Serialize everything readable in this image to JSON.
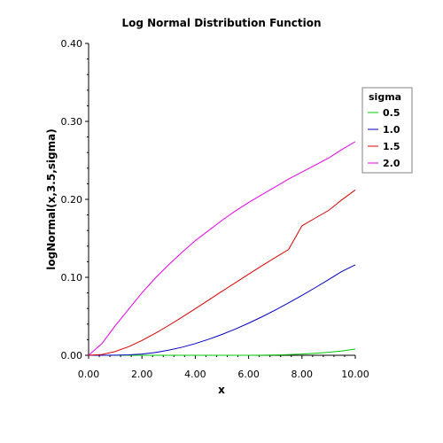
{
  "chart_data": {
    "type": "line",
    "title": "Log Normal Distribution Function",
    "xlabel": "x",
    "ylabel": "logNormal(x,3.5,sigma)",
    "xlim": [
      0,
      10
    ],
    "ylim": [
      0,
      0.4
    ],
    "xticks": [
      "0.00",
      "2.00",
      "4.00",
      "6.00",
      "8.00",
      "10.00"
    ],
    "yticks": [
      "0.00",
      "0.10",
      "0.20",
      "0.30",
      "0.40"
    ],
    "grid": false,
    "legend": {
      "title": "sigma",
      "position": "right"
    },
    "x": [
      0,
      0.5,
      1,
      1.5,
      2,
      2.5,
      3,
      3.5,
      4,
      4.5,
      5,
      5.5,
      6,
      6.5,
      7,
      7.5,
      8,
      8.5,
      9,
      9.5,
      10
    ],
    "series": [
      {
        "name": "0.5",
        "color": "#00c800",
        "values": [
          0,
          0,
          0,
          0,
          0,
          0,
          0,
          0,
          0,
          0,
          0,
          0,
          0,
          0.0001,
          0.0004,
          0.0008,
          0.0015,
          0.0025,
          0.0038,
          0.0055,
          0.008
        ]
      },
      {
        "name": "1.0",
        "color": "#0000c8",
        "values": [
          0,
          0,
          0.0001,
          0.0005,
          0.0016,
          0.0036,
          0.0065,
          0.0103,
          0.015,
          0.0205,
          0.0267,
          0.0336,
          0.0412,
          0.0493,
          0.058,
          0.0672,
          0.0768,
          0.0868,
          0.0971,
          0.1076,
          0.116
        ]
      },
      {
        "name": "1.5",
        "color": "#dc0000",
        "values": [
          0,
          0.001,
          0.0048,
          0.011,
          0.019,
          0.0282,
          0.0382,
          0.0488,
          0.0597,
          0.0708,
          0.082,
          0.093,
          0.104,
          0.1148,
          0.1254,
          0.1358,
          0.166,
          0.176,
          0.1858,
          0.1995,
          0.212
        ]
      },
      {
        "name": "2.0",
        "color": "#e600e6",
        "values": [
          0,
          0.015,
          0.038,
          0.059,
          0.08,
          0.099,
          0.116,
          0.132,
          0.147,
          0.16,
          0.173,
          0.185,
          0.196,
          0.206,
          0.216,
          0.226,
          0.235,
          0.244,
          0.253,
          0.264,
          0.274
        ]
      }
    ]
  }
}
